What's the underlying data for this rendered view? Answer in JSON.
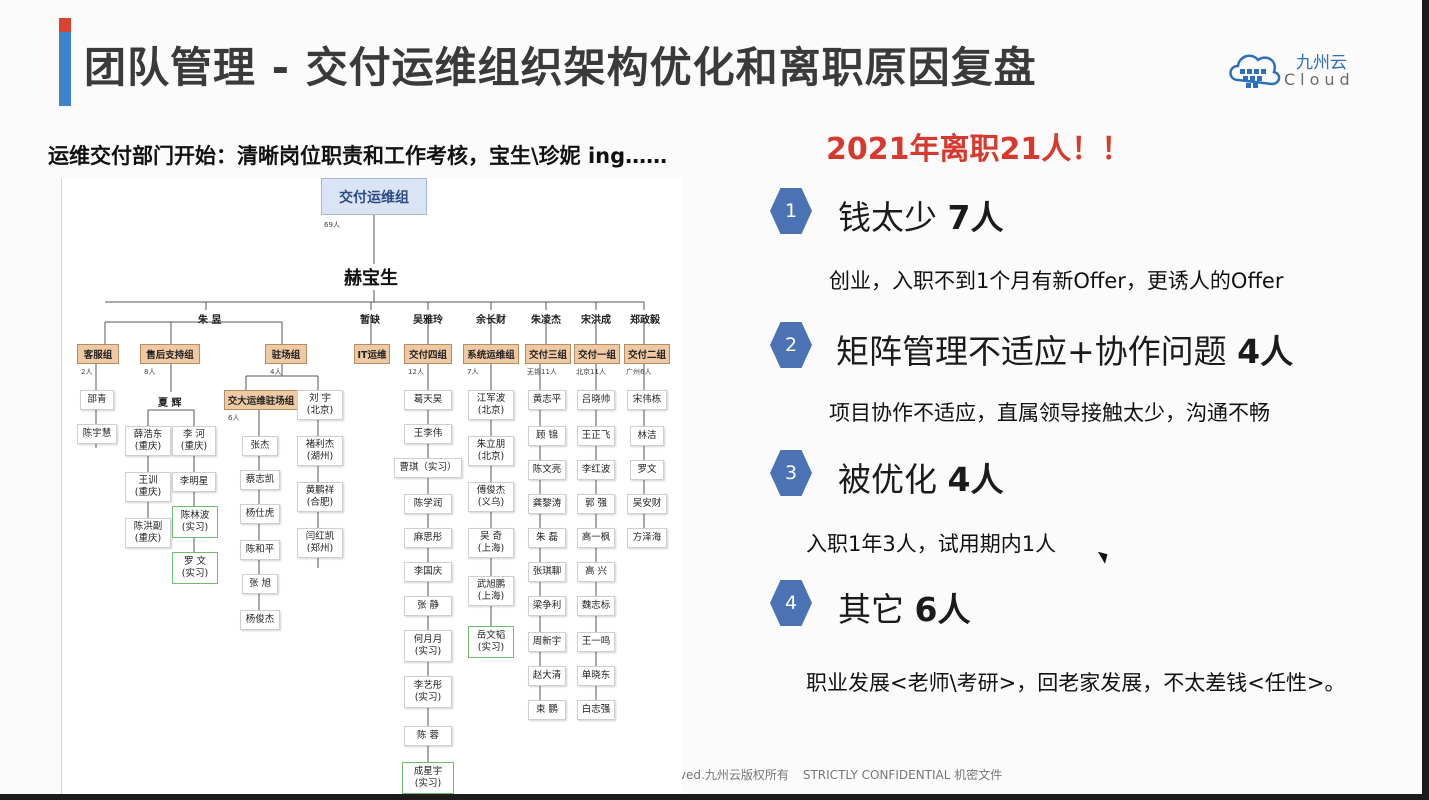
{
  "slide": {
    "title": "团队管理 - 交付运维组织架构优化和离职原因复盘",
    "subtitle": "运维交付部门开始：清晰岗位职责和工作考核，宝生\\珍妮 ing……",
    "headline": "2021年离职21人！！",
    "footer_left": "rved.九州云版权所有",
    "footer_right": "STRICTLY CONFIDENTIAL 机密文件"
  },
  "logo": {
    "cn": "九州云",
    "en": "Cloud"
  },
  "reasons": [
    {
      "num": "1",
      "title": "钱太少",
      "count": "7人",
      "detail": "创业，入职不到1个月有新Offer，更诱人的Offer"
    },
    {
      "num": "2",
      "title": "矩阵管理不适应+协作问题",
      "count": "4人",
      "detail": "项目协作不适应，直属领导接触太少，沟通不畅"
    },
    {
      "num": "3",
      "title": "被优化",
      "count": "4人",
      "detail": "入职1年3人，试用期内1人"
    },
    {
      "num": "4",
      "title": "其它",
      "count": "6人",
      "detail": "职业发展<老师\\考研>，回老家发展，不太差钱<任性>。"
    }
  ],
  "org": {
    "root": "交付运维组",
    "root_count": "69人",
    "head": "赫宝生",
    "leads": [
      "朱 昱",
      "暂缺",
      "吴雅玲",
      "余长财",
      "朱凌杰",
      "宋洪成",
      "郑政毅"
    ],
    "groups": [
      {
        "name": "客服组",
        "count": "2人",
        "members": [
          "邵青",
          "陈宇慧"
        ]
      },
      {
        "name": "售后支持组",
        "count": "8人",
        "sub_lead": "夏 辉",
        "col_a": [
          "薛浩东\n(重庆)",
          "王训\n(重庆)",
          "陈洪副\n(重庆)"
        ],
        "col_b": [
          "李 河\n(重庆)",
          "李明星",
          "陈林波\n(实习)",
          "罗 文\n(实习)"
        ]
      },
      {
        "name": "驻场组",
        "count": "4人",
        "members": [
          "刘 宇\n(北京)",
          "褚利杰\n(湖州)",
          "黄鹏祥\n(合肥)",
          "闫红凯\n(郑州)"
        ]
      },
      {
        "name": "交大运维驻场组",
        "count": "6人",
        "members": [
          "张杰",
          "蔡志凯",
          "杨仕虎",
          "陈和平",
          "张 旭",
          "杨俊杰"
        ]
      },
      {
        "name": "IT运维",
        "count": "",
        "members": []
      },
      {
        "name": "交付四组",
        "count": "12人",
        "members": [
          "葛天昊",
          "王李伟",
          "曹琪（实习）",
          "陈学润",
          "麻思彤",
          "李国庆",
          "张 静",
          "何月月\n(实习)",
          "李艺彤\n(实习)",
          "陈 蓉",
          "成星宇\n(实习)"
        ]
      },
      {
        "name": "系统运维组",
        "count": "7人",
        "members": [
          "江军波\n(北京)",
          "朱立朋\n(北京)",
          "傅俊杰\n(义乌)",
          "吴 奇\n(上海)",
          "武旭鹏\n(上海)",
          "岳文韬\n(实习)"
        ]
      },
      {
        "name": "交付三组",
        "count": "无锡11人",
        "members": [
          "黄志平",
          "顾 锦",
          "陈文亮",
          "龚黎涛",
          "朱 磊",
          "张琪聊",
          "梁争利",
          "周新宇",
          "赵大清",
          "束 鹏"
        ]
      },
      {
        "name": "交付一组",
        "count": "北京11人",
        "members": [
          "吕晓帅",
          "王正飞",
          "李红波",
          "郭 强",
          "高一枫",
          "高 兴",
          "魏志标",
          "王一鸣",
          "单晓东",
          "白志强"
        ]
      },
      {
        "name": "交付二组",
        "count": "广州6人",
        "members": [
          "宋伟栋",
          "林洁",
          "罗文",
          "吴安财",
          "方泽海"
        ]
      }
    ]
  }
}
